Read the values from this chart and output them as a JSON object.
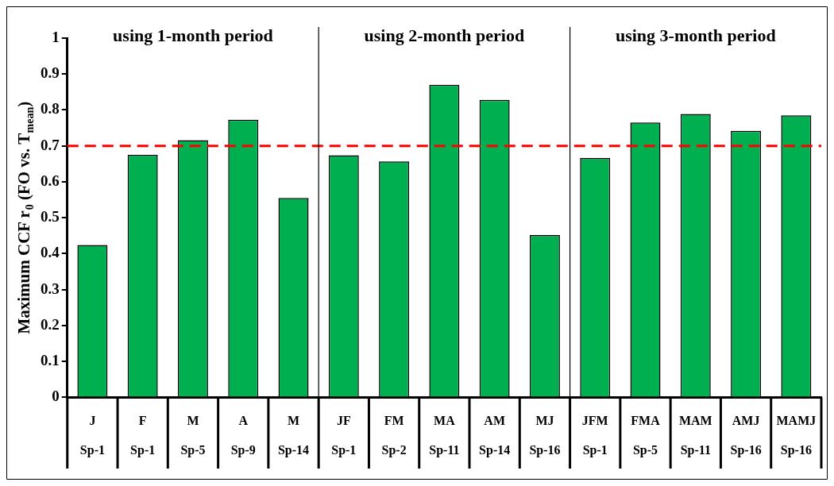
{
  "chart_data": {
    "type": "bar",
    "ylabel": "Maximum CCF r$_{0}$ (FO vs. T$_{mean}$)",
    "categories": [
      "J\nSp-1",
      "F\nSp-1",
      "M\nSp-5",
      "A\nSp-9",
      "M\nSp-14",
      "JF\nSp-1",
      "FM\nSp-2",
      "MA\nSp-11",
      "AM\nSp-14",
      "MJ\nSp-16",
      "JFM\nSp-1",
      "FMA\nSp-5",
      "MAM\nSp-11",
      "AMJ\nSp-16",
      "MAMJ\nSp-16"
    ],
    "values": [
      0.424,
      0.675,
      0.716,
      0.773,
      0.555,
      0.674,
      0.657,
      0.87,
      0.828,
      0.452,
      0.666,
      0.765,
      0.789,
      0.742,
      0.785
    ],
    "color": "#00b050",
    "ylim": [
      0,
      1
    ],
    "yticks": [
      0,
      0.1,
      0.2,
      0.3,
      0.4,
      0.5,
      0.6,
      0.7,
      0.8,
      0.9,
      1
    ],
    "ref_lines": [
      {
        "axis": "y",
        "value": 0.7,
        "color": "#ff0000",
        "line_style": "dashed"
      }
    ],
    "annotations": [
      "using 1-month period",
      "using 2-month period",
      "using 3-month period"
    ],
    "grid": false,
    "legend": false
  }
}
